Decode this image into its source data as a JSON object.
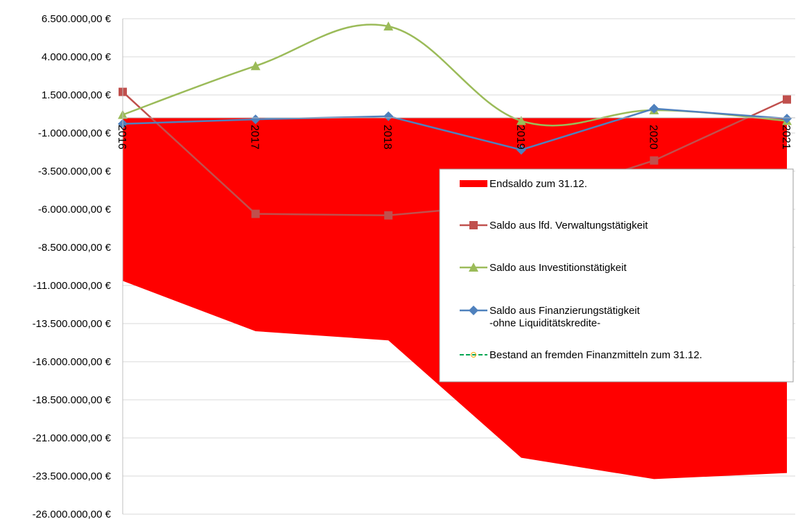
{
  "chart_data": {
    "type": "area",
    "title": "",
    "xlabel": "",
    "ylabel": "",
    "categories": [
      "2016",
      "2017",
      "2018",
      "2019",
      "2020",
      "2021"
    ],
    "ylim": [
      -26000000,
      6500000
    ],
    "yticks": [
      6500000,
      4000000,
      1500000,
      -1000000,
      -3500000,
      -6000000,
      -8500000,
      -11000000,
      -13500000,
      -16000000,
      -18500000,
      -21000000,
      -23500000,
      -26000000
    ],
    "ytick_labels": [
      "6.500.000,00 €",
      "4.000.000,00 €",
      "1.500.000,00 €",
      "-1.000.000,00 €",
      "-3.500.000,00 €",
      "-6.000.000,00 €",
      "-8.500.000,00 €",
      "-11.000.000,00 €",
      "-13.500.000,00 €",
      "-16.000.000,00 €",
      "-18.500.000,00 €",
      "-21.000.000,00 €",
      "-23.500.000,00 €",
      "-26.000.000,00 €"
    ],
    "grid": true,
    "legend_position": "right",
    "series": [
      {
        "name": "Endsaldo zum 31.12.",
        "kind": "area",
        "color": "#ff0000",
        "values": [
          -10700000,
          -14000000,
          -14600000,
          -22300000,
          -23700000,
          -23300000
        ]
      },
      {
        "name": "Saldo aus lfd. Verwaltungstätigkeit",
        "kind": "line",
        "color": "#c0504d",
        "marker": "square",
        "values": [
          1700000,
          -6300000,
          -6400000,
          -5600000,
          -2800000,
          1200000
        ]
      },
      {
        "name": "Saldo aus Investitionstätigkeit",
        "kind": "line",
        "color": "#9bbb59",
        "marker": "triangle",
        "smooth": true,
        "values": [
          200000,
          3400000,
          6000000,
          -200000,
          500000,
          -200000
        ]
      },
      {
        "name": "Saldo aus Finanzierungstätigkeit\n-ohne Liquiditätskredite-",
        "kind": "line",
        "color": "#4f81bd",
        "marker": "diamond",
        "values": [
          -400000,
          -100000,
          100000,
          -2100000,
          600000,
          -50000
        ]
      },
      {
        "name": "Bestand an fremden Finanzmitteln zum 31.12.",
        "kind": "line",
        "color": "#00a550",
        "marker": "circle-dash",
        "values": [
          0,
          0,
          0,
          0,
          0,
          0
        ]
      }
    ]
  }
}
